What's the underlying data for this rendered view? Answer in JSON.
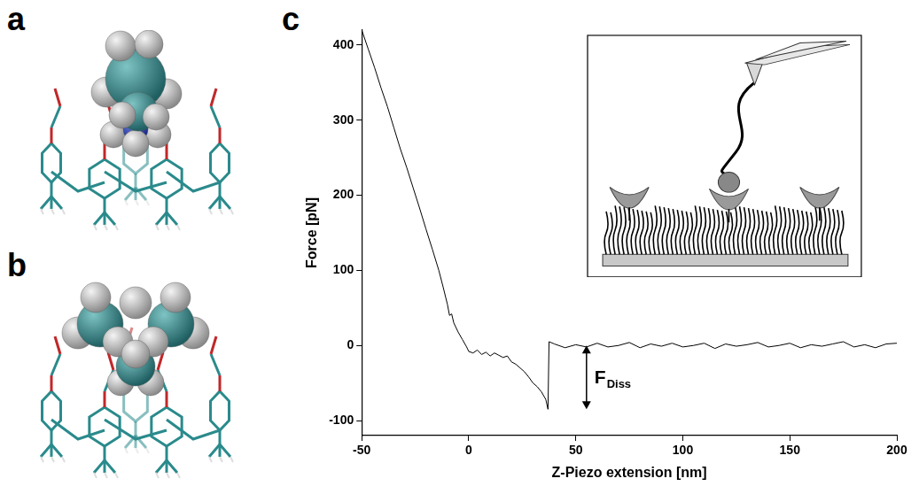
{
  "panels": [
    {
      "panel_label": "a"
    },
    {
      "panel_label": "b"
    }
  ],
  "chart_data": {
    "panel_label": "c",
    "type": "line",
    "x_label": "Z-Piezo extension [nm]",
    "y_label": "Force [pN]",
    "xlim": [
      -50,
      200
    ],
    "xticks": [
      -50,
      0,
      50,
      100,
      150,
      200
    ],
    "ylim": [
      -120,
      420
    ],
    "yticks": [
      -100,
      0,
      100,
      200,
      300,
      400
    ],
    "grid": false,
    "color": "#000000",
    "x": [
      -50,
      -47,
      -44,
      -41,
      -38,
      -35,
      -32,
      -29,
      -26,
      -23,
      -20,
      -17,
      -14,
      -12,
      -10,
      -9,
      -8,
      -7,
      -5,
      -3,
      -1,
      0,
      2,
      4,
      6,
      8,
      10,
      12,
      14,
      16,
      18,
      20,
      22,
      24,
      26,
      28,
      30,
      32,
      34,
      36,
      37,
      37.5,
      40,
      45,
      50,
      55,
      60,
      65,
      70,
      75,
      80,
      85,
      90,
      95,
      100,
      105,
      110,
      115,
      120,
      125,
      130,
      135,
      140,
      145,
      150,
      155,
      160,
      165,
      170,
      175,
      180,
      185,
      190,
      195,
      200
    ],
    "values": [
      420,
      395,
      370,
      343,
      318,
      290,
      262,
      237,
      210,
      183,
      155,
      128,
      100,
      78,
      55,
      40,
      42,
      30,
      18,
      8,
      -2,
      -8,
      -10,
      -6,
      -12,
      -9,
      -14,
      -10,
      -13,
      -16,
      -14,
      -22,
      -25,
      -30,
      -35,
      -42,
      -50,
      -55,
      -62,
      -72,
      -85,
      5,
      2,
      -3,
      1,
      -2,
      3,
      -2,
      0,
      4,
      -3,
      2,
      -1,
      3,
      -2,
      0,
      3,
      -4,
      2,
      -1,
      1,
      4,
      -2,
      0,
      3,
      -3,
      1,
      -1,
      2,
      5,
      -2,
      1,
      -3,
      2,
      3
    ],
    "annotations": [
      {
        "text": "F",
        "subscript": "Diss",
        "x": 55,
        "y_from": 0,
        "y_to": -85
      }
    ]
  }
}
